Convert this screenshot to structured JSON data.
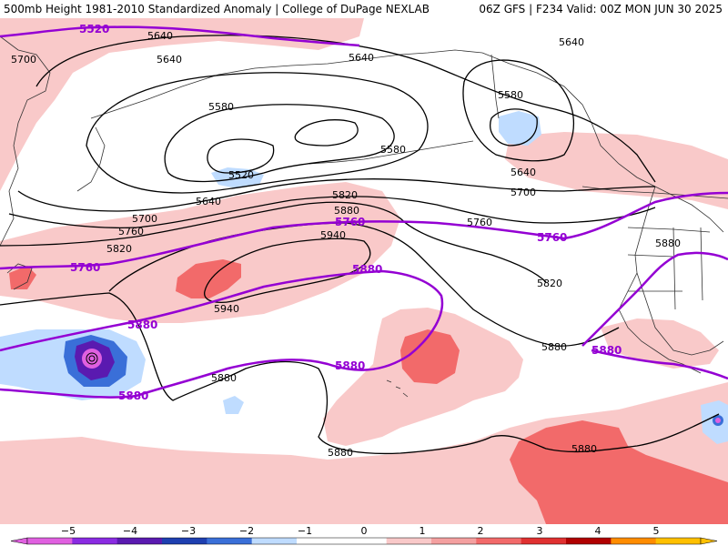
{
  "title": {
    "left": "500mb Height 1981-2010 Standardized Anomaly | College of DuPage NEXLAB",
    "right": "06Z GFS | F234 Valid: 00Z MON JUN 30 2025"
  },
  "colors": {
    "contour": "#000000",
    "reference_contour": "#9400d3",
    "coastline": "#333333",
    "anomaly_pos_1": "#f9c9c9",
    "anomaly_pos_2": "#f26a6a",
    "anomaly_neg_1": "#bfdcff",
    "anomaly_neg_2": "#3a6fd8",
    "anomaly_neg_4": "#5a1ab0",
    "anomaly_neg_5": "#e060e0"
  },
  "contours": {
    "black_labels": [
      {
        "text": "5640"
      },
      {
        "text": "5700"
      },
      {
        "text": "5640"
      },
      {
        "text": "5640"
      },
      {
        "text": "5640"
      },
      {
        "text": "5580"
      },
      {
        "text": "5580"
      },
      {
        "text": "5580"
      },
      {
        "text": "5520"
      },
      {
        "text": "5640"
      },
      {
        "text": "5700"
      },
      {
        "text": "5640"
      },
      {
        "text": "5700"
      },
      {
        "text": "5760"
      },
      {
        "text": "5820"
      },
      {
        "text": "5880"
      },
      {
        "text": "5940"
      },
      {
        "text": "5760"
      },
      {
        "text": "5820"
      },
      {
        "text": "5940"
      },
      {
        "text": "5820"
      },
      {
        "text": "5880"
      },
      {
        "text": "5880"
      },
      {
        "text": "5880"
      },
      {
        "text": "5880"
      },
      {
        "text": "5880"
      }
    ],
    "purple_labels": [
      {
        "text": "5520"
      },
      {
        "text": "5760"
      },
      {
        "text": "5760"
      },
      {
        "text": "5760"
      },
      {
        "text": "5880"
      },
      {
        "text": "5880"
      },
      {
        "text": "5880"
      },
      {
        "text": "5880"
      },
      {
        "text": "5880"
      }
    ]
  },
  "colorbar": {
    "ticks": [
      "−5",
      "−4",
      "−3",
      "−2",
      "−1",
      "0",
      "1",
      "2",
      "3",
      "4",
      "5"
    ],
    "colors": [
      "#e060e0",
      "#8a2be2",
      "#5a1ab0",
      "#1e3fb0",
      "#3a6fd8",
      "#bfdcff",
      "#ffffff",
      "#ffffff",
      "#f9c9c9",
      "#f4a0a0",
      "#f26a6a",
      "#e03030",
      "#b00000",
      "#ff8c00",
      "#ffc000"
    ]
  }
}
